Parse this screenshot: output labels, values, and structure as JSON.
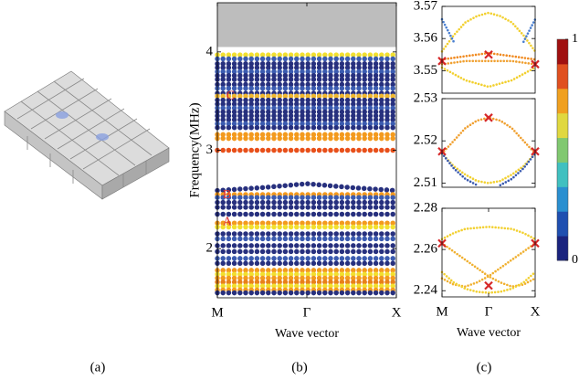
{
  "figure_labels": [
    "(a)",
    "(b)",
    "(c)"
  ],
  "chart_data": [
    {
      "type": "line",
      "ylabel": "Frequency(MHz)",
      "xlabel": "Wave vector",
      "xlim": [
        0,
        2
      ],
      "ylim": [
        1.5,
        4.5
      ],
      "yticks": [
        2,
        3,
        4
      ],
      "xticks": [
        {
          "value": 0,
          "label": "M"
        },
        {
          "value": 1,
          "label": "Γ"
        },
        {
          "value": 2,
          "label": "X"
        }
      ],
      "shaded_region": [
        4.05,
        4.5
      ],
      "annotations": [
        {
          "text": "A",
          "x": 0.06,
          "y": 2.27
        },
        {
          "text": "B",
          "x": 0.06,
          "y": 2.54
        },
        {
          "text": "C",
          "x": 0.1,
          "y": 3.55
        }
      ],
      "x": [
        0,
        0.5,
        1,
        1.5,
        2
      ],
      "series": [
        {
          "color": "#f2e030",
          "values": [
            3.97,
            3.97,
            3.97,
            3.97,
            3.97
          ]
        },
        {
          "color": "#3b5bb0",
          "values": [
            3.93,
            3.93,
            3.93,
            3.93,
            3.93
          ]
        },
        {
          "color": "#27307e",
          "values": [
            3.88,
            3.88,
            3.88,
            3.88,
            3.88
          ]
        },
        {
          "color": "#27307e",
          "values": [
            3.84,
            3.84,
            3.84,
            3.84,
            3.84
          ]
        },
        {
          "color": "#3b5bb0",
          "values": [
            3.8,
            3.8,
            3.8,
            3.8,
            3.8
          ]
        },
        {
          "color": "#27307e",
          "values": [
            3.76,
            3.76,
            3.76,
            3.76,
            3.76
          ]
        },
        {
          "color": "#27307e",
          "values": [
            3.72,
            3.72,
            3.72,
            3.72,
            3.72
          ]
        },
        {
          "color": "#27307e",
          "values": [
            3.67,
            3.67,
            3.67,
            3.67,
            3.67
          ]
        },
        {
          "color": "#3b5bb0",
          "values": [
            3.63,
            3.63,
            3.63,
            3.63,
            3.63
          ]
        },
        {
          "color": "#27307e",
          "values": [
            3.58,
            3.58,
            3.58,
            3.58,
            3.58
          ]
        },
        {
          "color": "#f0b830",
          "values": [
            3.55,
            3.55,
            3.55,
            3.55,
            3.55
          ]
        },
        {
          "color": "#27307e",
          "values": [
            3.51,
            3.51,
            3.51,
            3.51,
            3.51
          ]
        },
        {
          "color": "#27307e",
          "values": [
            3.47,
            3.47,
            3.47,
            3.47,
            3.47
          ]
        },
        {
          "color": "#3b5bb0",
          "values": [
            3.43,
            3.43,
            3.43,
            3.43,
            3.43
          ]
        },
        {
          "color": "#27307e",
          "values": [
            3.39,
            3.39,
            3.39,
            3.39,
            3.39
          ]
        },
        {
          "color": "#27307e",
          "values": [
            3.35,
            3.35,
            3.35,
            3.35,
            3.35
          ]
        },
        {
          "color": "#27307e",
          "values": [
            3.31,
            3.31,
            3.31,
            3.31,
            3.31
          ]
        },
        {
          "color": "#3b5bb0",
          "values": [
            3.27,
            3.27,
            3.27,
            3.27,
            3.27
          ]
        },
        {
          "color": "#27307e",
          "values": [
            3.23,
            3.23,
            3.23,
            3.23,
            3.23
          ]
        },
        {
          "color": "#f39a1e",
          "values": [
            3.16,
            3.16,
            3.16,
            3.16,
            3.16
          ]
        },
        {
          "color": "#f39a1e",
          "values": [
            3.12,
            3.12,
            3.12,
            3.12,
            3.12
          ]
        },
        {
          "color": "#e8501a",
          "values": [
            3.0,
            3.0,
            3.0,
            3.0,
            3.0
          ]
        },
        {
          "color": "#27307e",
          "values": [
            2.59,
            2.62,
            2.66,
            2.62,
            2.59
          ]
        },
        {
          "color": "#f39a1e",
          "values": [
            2.55,
            2.55,
            2.55,
            2.55,
            2.55
          ]
        },
        {
          "color": "#3b5bb0",
          "values": [
            2.52,
            2.52,
            2.52,
            2.52,
            2.52
          ]
        },
        {
          "color": "#27307e",
          "values": [
            2.47,
            2.47,
            2.47,
            2.47,
            2.47
          ]
        },
        {
          "color": "#27307e",
          "values": [
            2.42,
            2.42,
            2.42,
            2.42,
            2.42
          ]
        },
        {
          "color": "#27307e",
          "values": [
            2.35,
            2.35,
            2.35,
            2.35,
            2.35
          ]
        },
        {
          "color": "#f39a1e",
          "values": [
            2.26,
            2.26,
            2.26,
            2.26,
            2.26
          ]
        },
        {
          "color": "#f2e030",
          "values": [
            2.22,
            2.22,
            2.22,
            2.22,
            2.22
          ]
        },
        {
          "color": "#27307e",
          "values": [
            2.15,
            2.15,
            2.15,
            2.15,
            2.15
          ]
        },
        {
          "color": "#3b5bb0",
          "values": [
            2.1,
            2.1,
            2.1,
            2.1,
            2.1
          ]
        },
        {
          "color": "#27307e",
          "values": [
            2.03,
            2.03,
            2.03,
            2.03,
            2.03
          ]
        },
        {
          "color": "#27307e",
          "values": [
            1.97,
            1.97,
            1.97,
            1.97,
            1.97
          ]
        },
        {
          "color": "#3b5bb0",
          "values": [
            1.9,
            1.9,
            1.9,
            1.9,
            1.9
          ]
        },
        {
          "color": "#27307e",
          "values": [
            1.85,
            1.85,
            1.85,
            1.85,
            1.85
          ]
        },
        {
          "color": "#f39a1e",
          "values": [
            1.78,
            1.78,
            1.78,
            1.78,
            1.78
          ]
        },
        {
          "color": "#f2e030",
          "values": [
            1.74,
            1.74,
            1.74,
            1.74,
            1.74
          ]
        },
        {
          "color": "#f39a1e",
          "values": [
            1.7,
            1.7,
            1.7,
            1.7,
            1.7
          ]
        },
        {
          "color": "#e8801a",
          "values": [
            1.66,
            1.66,
            1.66,
            1.66,
            1.66
          ]
        },
        {
          "color": "#f2e030",
          "values": [
            1.62,
            1.62,
            1.62,
            1.62,
            1.62
          ]
        },
        {
          "color": "#f39a1e",
          "values": [
            1.58,
            1.58,
            1.58,
            1.58,
            1.58
          ]
        },
        {
          "color": "#27307e",
          "values": [
            1.55,
            1.55,
            1.55,
            1.55,
            1.55
          ]
        }
      ]
    },
    {
      "type": "line",
      "xlim": [
        0,
        2
      ],
      "ylim": [
        3.543,
        3.57
      ],
      "yticks": [
        3.55,
        3.56,
        3.57
      ],
      "x": [
        0,
        0.25,
        0.5,
        0.75,
        1,
        1.25,
        1.5,
        1.75,
        2
      ],
      "series": [
        {
          "color": "#f2d030",
          "values": [
            3.556,
            3.561,
            3.565,
            3.567,
            3.568,
            3.567,
            3.565,
            3.561,
            3.556
          ]
        },
        {
          "color": "#f08a20",
          "values": [
            3.5535,
            3.554,
            3.5545,
            3.555,
            3.5555,
            3.555,
            3.5545,
            3.554,
            3.5535
          ]
        },
        {
          "color": "#f0a030",
          "values": [
            3.552,
            3.5525,
            3.553,
            3.553,
            3.553,
            3.553,
            3.553,
            3.5525,
            3.552
          ]
        },
        {
          "color": "#f2d030",
          "values": [
            3.551,
            3.549,
            3.547,
            3.546,
            3.545,
            3.546,
            3.547,
            3.549,
            3.551
          ]
        },
        {
          "color": "#4a7fd0",
          "values": [
            3.566,
            3.559,
            null,
            null,
            null,
            null,
            null,
            3.559,
            3.566
          ]
        },
        {
          "color": "#d62728",
          "marker": "x",
          "x": [
            0,
            1,
            2
          ],
          "values": [
            3.553,
            3.555,
            3.552
          ]
        }
      ]
    },
    {
      "type": "line",
      "xlim": [
        0,
        2
      ],
      "ylim": [
        2.509,
        2.53
      ],
      "yticks": [
        2.51,
        2.52,
        2.53
      ],
      "x": [
        0,
        0.25,
        0.5,
        0.75,
        1,
        1.25,
        1.5,
        1.75,
        2
      ],
      "series": [
        {
          "color": "#f0a030",
          "values": [
            2.517,
            2.52,
            2.523,
            2.5248,
            2.5255,
            2.5248,
            2.523,
            2.52,
            2.517
          ]
        },
        {
          "color": "#f2d030",
          "values": [
            2.517,
            2.514,
            2.512,
            2.5105,
            2.51,
            2.5105,
            2.512,
            2.514,
            2.517
          ]
        },
        {
          "color": "#3b5bb0",
          "values": [
            2.517,
            2.5135,
            2.511,
            2.5095,
            null,
            2.5095,
            2.511,
            2.5135,
            2.517
          ]
        },
        {
          "color": "#d62728",
          "marker": "x",
          "x": [
            0,
            1,
            2
          ],
          "values": [
            2.5175,
            2.5255,
            2.5175
          ]
        }
      ]
    },
    {
      "type": "line",
      "xlabel": "Wave vector",
      "xlim": [
        0,
        2
      ],
      "ylim": [
        2.237,
        2.28
      ],
      "yticks": [
        2.24,
        2.26,
        2.28
      ],
      "xticks": [
        {
          "value": 0,
          "label": "M"
        },
        {
          "value": 1,
          "label": "Γ"
        },
        {
          "value": 2,
          "label": "X"
        }
      ],
      "x": [
        0,
        0.25,
        0.5,
        0.75,
        1,
        1.25,
        1.5,
        1.75,
        2
      ],
      "series": [
        {
          "color": "#f2d030",
          "values": [
            2.265,
            2.268,
            2.27,
            2.2705,
            2.271,
            2.2705,
            2.27,
            2.268,
            2.265
          ]
        },
        {
          "color": "#f0b030",
          "values": [
            2.263,
            2.259,
            2.255,
            2.251,
            2.247,
            2.244,
            2.242,
            2.243,
            2.246
          ]
        },
        {
          "color": "#f0b030",
          "values": [
            2.246,
            2.243,
            2.242,
            2.244,
            2.247,
            2.251,
            2.255,
            2.259,
            2.263
          ]
        },
        {
          "color": "#f2d030",
          "values": [
            2.249,
            2.244,
            2.241,
            2.2395,
            2.239,
            2.2395,
            2.241,
            2.244,
            2.249
          ]
        },
        {
          "color": "#d62728",
          "marker": "x",
          "x": [
            0,
            1,
            2
          ],
          "values": [
            2.263,
            2.2425,
            2.263
          ]
        }
      ]
    },
    {
      "type": "colorbar",
      "ylim": [
        0,
        1
      ],
      "yticks": [
        0,
        1
      ],
      "colors": [
        "#1a237e",
        "#1f4fb0",
        "#2a8fd0",
        "#40c0c0",
        "#80c870",
        "#e0d840",
        "#f0a020",
        "#e05020",
        "#a01010"
      ]
    }
  ]
}
